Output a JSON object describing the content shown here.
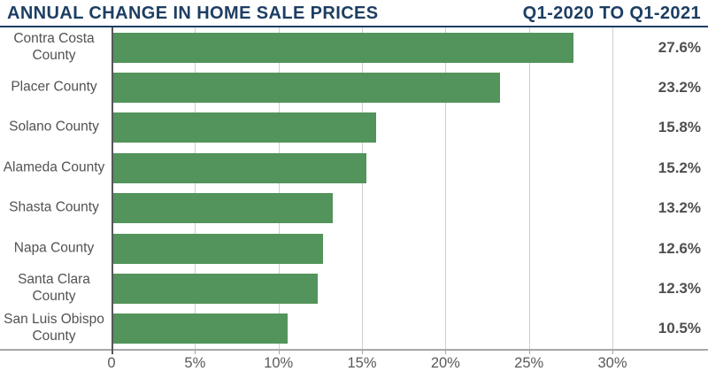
{
  "header": {
    "title": "ANNUAL CHANGE IN HOME SALE PRICES",
    "period": "Q1-2020 TO Q1-2021"
  },
  "chart_data": {
    "type": "bar",
    "orientation": "horizontal",
    "title": "ANNUAL CHANGE IN HOME SALE PRICES",
    "subtitle": "Q1-2020 TO Q1-2021",
    "categories": [
      "Contra Costa County",
      "Placer County",
      "Solano County",
      "Alameda County",
      "Shasta County",
      "Napa County",
      "Santa Clara County",
      "San Luis Obispo County"
    ],
    "values": [
      27.6,
      23.2,
      15.8,
      15.2,
      13.2,
      12.6,
      12.3,
      10.5
    ],
    "value_labels": [
      "27.6%",
      "23.2%",
      "15.8%",
      "15.2%",
      "13.2%",
      "12.6%",
      "12.3%",
      "10.5%"
    ],
    "x_ticks": [
      {
        "value": 0,
        "label": "0"
      },
      {
        "value": 5,
        "label": "5%"
      },
      {
        "value": 10,
        "label": "10%"
      },
      {
        "value": 15,
        "label": "15%"
      },
      {
        "value": 20,
        "label": "20%"
      },
      {
        "value": 25,
        "label": "25%"
      },
      {
        "value": 30,
        "label": "30%"
      }
    ],
    "xlim": [
      0,
      35.7
    ],
    "xlabel": "",
    "ylabel": "",
    "grid": true,
    "legend": "none"
  },
  "colors": {
    "navy": "#1d3e63",
    "bar_green": "#52945b",
    "category_label": "#515254",
    "value_label": "#4e4f51",
    "tick_label": "#58595b",
    "gridline": "#cfcfcf",
    "axis_line": "#a5a7aa",
    "zero_axis": "#55565a"
  }
}
